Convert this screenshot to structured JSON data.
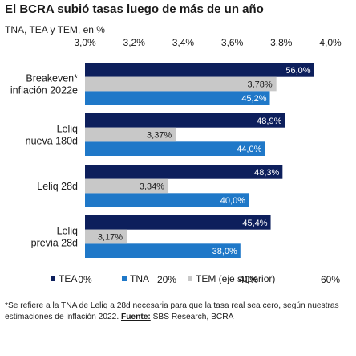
{
  "chart_data": {
    "type": "bar",
    "orientation": "horizontal",
    "title": "El BCRA subió tasas luego de más de un año",
    "subtitle": "TNA, TEA y TEM, en %",
    "categories": [
      "Breakeven*\ninflación 2022e",
      "Leliq\nnueva 180d",
      "Leliq 28d",
      "Leliq\nprevia 28d"
    ],
    "series": [
      {
        "name": "TEA",
        "axis": "bottom",
        "color": "#0d1f5c",
        "values": [
          56.0,
          48.9,
          48.3,
          45.4
        ],
        "labels": [
          "56,0%",
          "48,9%",
          "48,3%",
          "45,4%"
        ]
      },
      {
        "name": "TNA",
        "axis": "bottom",
        "color": "#1f78c8",
        "values": [
          45.2,
          44.0,
          40.0,
          38.0
        ],
        "labels": [
          "45,2%",
          "44,0%",
          "40,0%",
          "38,0%"
        ]
      },
      {
        "name": "TEM (eje superior)",
        "axis": "top",
        "color": "#c8c8c8",
        "values": [
          3.78,
          3.37,
          3.34,
          3.17
        ],
        "labels": [
          "3,78%",
          "3,37%",
          "3,34%",
          "3,17%"
        ]
      }
    ],
    "bottom_axis": {
      "range": [
        0,
        60
      ],
      "ticks": [
        0,
        20,
        40,
        60
      ],
      "tick_labels": [
        "0%",
        "20%",
        "40%",
        "60%"
      ]
    },
    "top_axis": {
      "range": [
        3.0,
        4.0
      ],
      "ticks": [
        3.0,
        3.2,
        3.4,
        3.6,
        3.8,
        4.0
      ],
      "tick_labels": [
        "3,0%",
        "3,2%",
        "3,4%",
        "3,6%",
        "3,8%",
        "4,0%"
      ]
    },
    "grid": false,
    "legend_position": "bottom"
  },
  "footnote": {
    "text": "*Se refiere a la TNA de Leliq a 28d necesaria para que la tasa real sea cero, según nuestras estimaciones de inflación 2022. ",
    "source_label": "Fuente:",
    "source_text": " SBS Research, BCRA"
  }
}
